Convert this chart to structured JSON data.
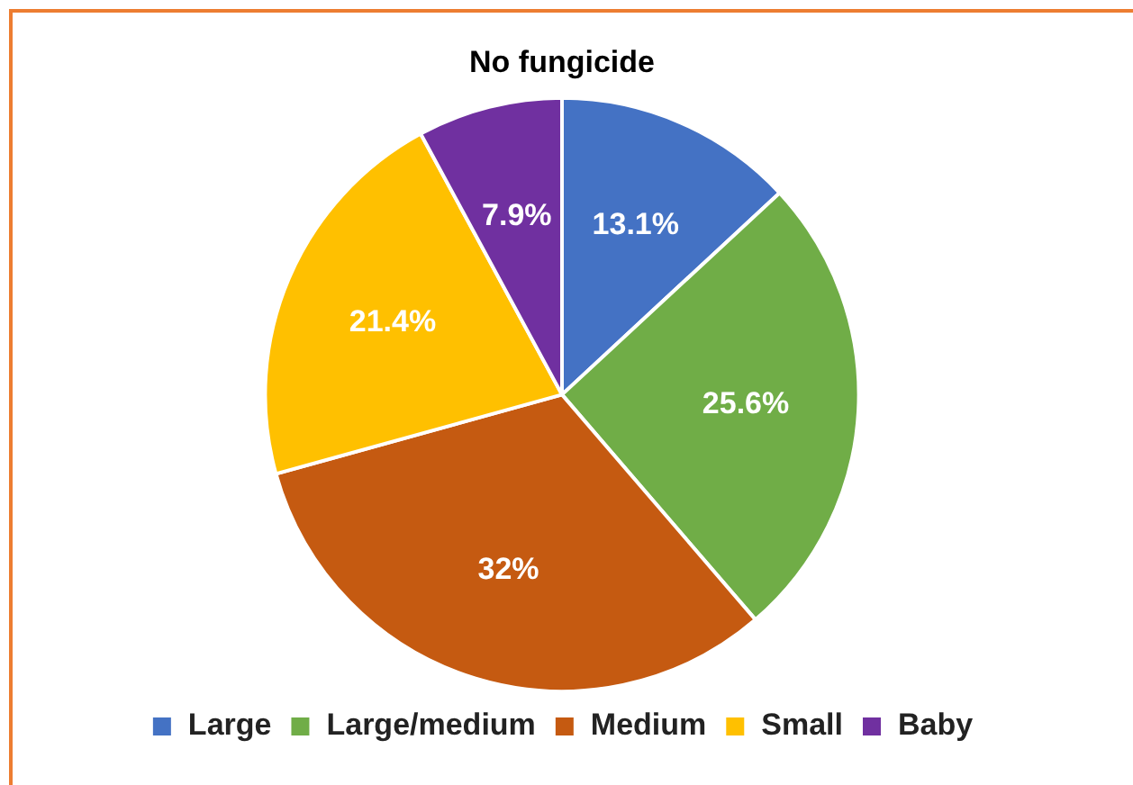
{
  "chart_data": {
    "type": "pie",
    "title": "No fungicide",
    "categories": [
      "Large",
      "Large/medium",
      "Medium",
      "Small",
      "Baby"
    ],
    "values": [
      13.1,
      25.6,
      32,
      21.4,
      7.9
    ],
    "colors": [
      "#4472c4",
      "#70ad47",
      "#c55a11",
      "#ffc000",
      "#7030a0"
    ],
    "value_labels": [
      "13.1%",
      "25.6%",
      "32%",
      "21.4%",
      "7.9%"
    ],
    "legend": "bottom"
  }
}
